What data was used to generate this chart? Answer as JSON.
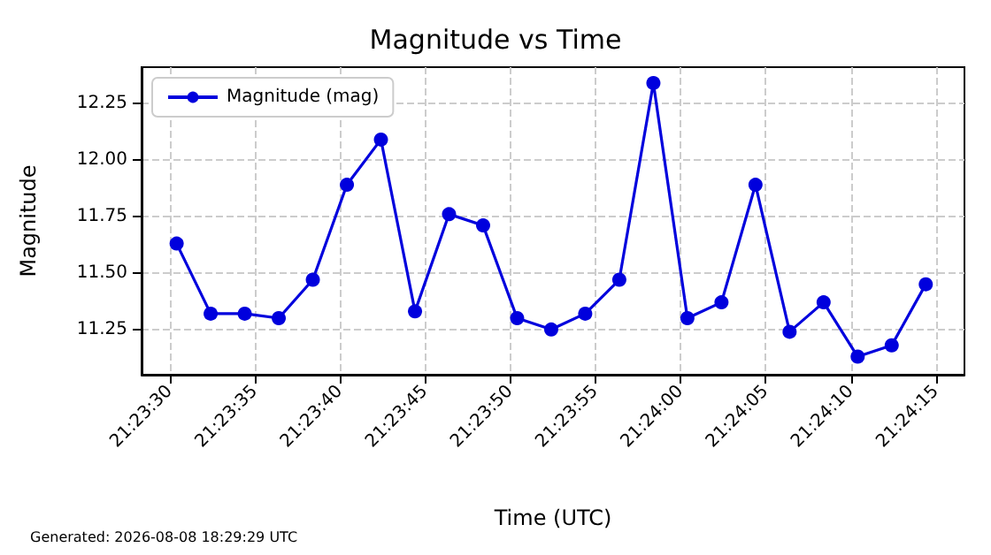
{
  "chart_data": {
    "type": "line",
    "title": "Magnitude vs Time",
    "xlabel": "Time (UTC)",
    "ylabel": "Magnitude",
    "annotations": [
      "Generated: 2026-08-08 18:29:29 UTC"
    ],
    "x": [
      21.391778,
      21.392333,
      21.392889,
      21.393444,
      21.394,
      21.394556,
      21.395111,
      21.395667,
      21.396222,
      21.396778,
      21.397333,
      21.397889,
      21.398444,
      21.399,
      21.399556,
      21.400111,
      21.400667,
      21.401222,
      21.401778,
      21.402333,
      21.402889,
      21.403444,
      21.404
    ],
    "series": [
      {
        "name": "Magnitude (mag)",
        "color": "#0000dd",
        "values": [
          11.63,
          11.32,
          11.32,
          11.3,
          11.47,
          11.89,
          12.09,
          11.33,
          11.76,
          11.71,
          11.3,
          11.25,
          11.32,
          11.47,
          12.34,
          11.3,
          11.37,
          11.89,
          11.24,
          11.37,
          11.13,
          11.18,
          11.45
        ]
      }
    ],
    "xlim": [
      21.391206,
      21.404631
    ],
    "xticks": [
      {
        "value": 21.391667,
        "label": "21:23:30"
      },
      {
        "value": 21.393056,
        "label": "21:23:35"
      },
      {
        "value": 21.394444,
        "label": "21:23:40"
      },
      {
        "value": 21.395833,
        "label": "21:23:45"
      },
      {
        "value": 21.397222,
        "label": "21:23:50"
      },
      {
        "value": 21.398611,
        "label": "21:23:55"
      },
      {
        "value": 21.4,
        "label": "21:24:00"
      },
      {
        "value": 21.401389,
        "label": "21:24:05"
      },
      {
        "value": 21.402778,
        "label": "21:24:10"
      },
      {
        "value": 21.404167,
        "label": "21:24:15"
      }
    ],
    "ylim": [
      11.05,
      12.41
    ],
    "yticks": [
      11.25,
      {
        "value": 11.5,
        "label": "11.50"
      },
      11.75,
      {
        "value": 12.0,
        "label": "12.00"
      },
      12.25
    ],
    "grid": true,
    "legend": "top left",
    "marker": "circle",
    "line_style": "solid"
  }
}
